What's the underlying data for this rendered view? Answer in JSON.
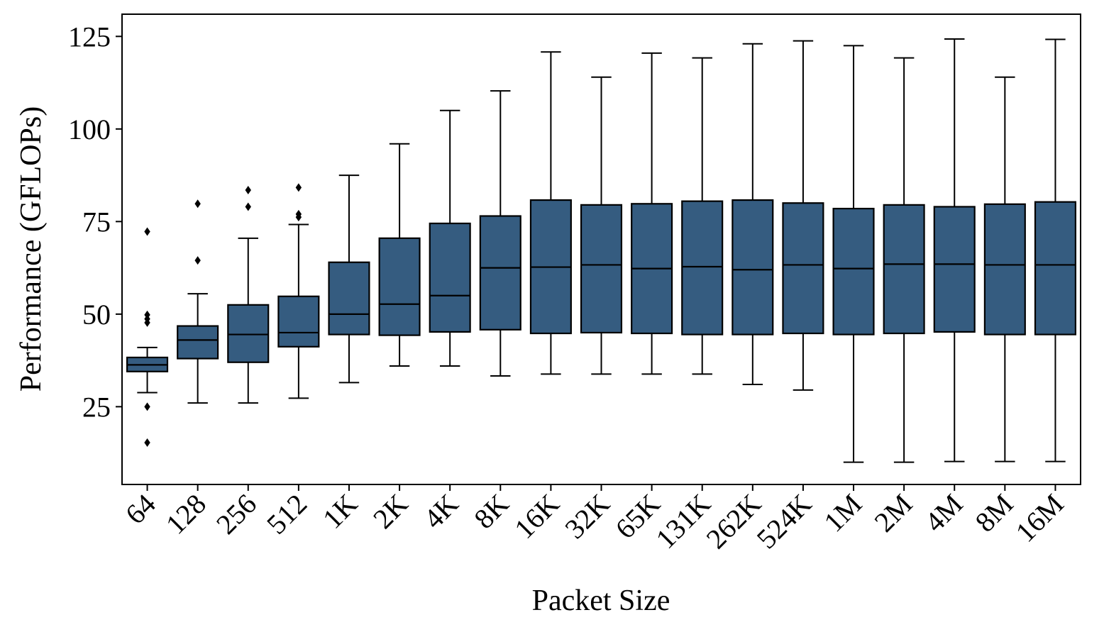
{
  "chart_data": {
    "type": "box",
    "title": "",
    "xlabel": "Packet Size",
    "ylabel": "Performance (GFLOPs)",
    "ylim": [
      4,
      131
    ],
    "yticks": [
      25,
      50,
      75,
      100,
      125
    ],
    "grid": false,
    "legend": "none",
    "box_color": "#355c80",
    "categories": [
      "64",
      "128",
      "256",
      "512",
      "1K",
      "2K",
      "4K",
      "8K",
      "16K",
      "32K",
      "65K",
      "131K",
      "262K",
      "524K",
      "1M",
      "2M",
      "4M",
      "8M",
      "16M"
    ],
    "boxes": [
      {
        "whisker_low": 28.8,
        "q1": 34.5,
        "median": 36.3,
        "q3": 38.3,
        "whisker_high": 41.0,
        "outliers": [
          72.3,
          49.8,
          48.7,
          47.7,
          25.0,
          15.3
        ]
      },
      {
        "whisker_low": 26.0,
        "q1": 38.0,
        "median": 43.0,
        "q3": 46.8,
        "whisker_high": 55.5,
        "outliers": [
          79.8,
          64.5
        ]
      },
      {
        "whisker_low": 26.0,
        "q1": 37.0,
        "median": 44.5,
        "q3": 52.5,
        "whisker_high": 70.5,
        "outliers": [
          83.5,
          79.0
        ]
      },
      {
        "whisker_low": 27.3,
        "q1": 41.2,
        "median": 45.0,
        "q3": 54.8,
        "whisker_high": 74.2,
        "outliers": [
          84.2,
          77.0,
          76.2
        ]
      },
      {
        "whisker_low": 31.5,
        "q1": 44.5,
        "median": 50.0,
        "q3": 64.0,
        "whisker_high": 87.5,
        "outliers": []
      },
      {
        "whisker_low": 36.0,
        "q1": 44.3,
        "median": 52.7,
        "q3": 70.5,
        "whisker_high": 96.0,
        "outliers": []
      },
      {
        "whisker_low": 36.0,
        "q1": 45.2,
        "median": 55.0,
        "q3": 74.5,
        "whisker_high": 105.0,
        "outliers": []
      },
      {
        "whisker_low": 33.3,
        "q1": 45.8,
        "median": 62.5,
        "q3": 76.5,
        "whisker_high": 110.3,
        "outliers": []
      },
      {
        "whisker_low": 33.8,
        "q1": 44.8,
        "median": 62.7,
        "q3": 80.8,
        "whisker_high": 120.8,
        "outliers": []
      },
      {
        "whisker_low": 33.8,
        "q1": 45.0,
        "median": 63.3,
        "q3": 79.5,
        "whisker_high": 114.0,
        "outliers": []
      },
      {
        "whisker_low": 33.8,
        "q1": 44.8,
        "median": 62.3,
        "q3": 79.8,
        "whisker_high": 120.5,
        "outliers": []
      },
      {
        "whisker_low": 33.8,
        "q1": 44.5,
        "median": 62.8,
        "q3": 80.5,
        "whisker_high": 119.2,
        "outliers": []
      },
      {
        "whisker_low": 31.0,
        "q1": 44.5,
        "median": 62.0,
        "q3": 80.8,
        "whisker_high": 123.0,
        "outliers": []
      },
      {
        "whisker_low": 29.5,
        "q1": 44.8,
        "median": 63.3,
        "q3": 80.0,
        "whisker_high": 123.8,
        "outliers": []
      },
      {
        "whisker_low": 10.0,
        "q1": 44.5,
        "median": 62.3,
        "q3": 78.5,
        "whisker_high": 122.5,
        "outliers": []
      },
      {
        "whisker_low": 10.0,
        "q1": 44.8,
        "median": 63.5,
        "q3": 79.5,
        "whisker_high": 119.2,
        "outliers": []
      },
      {
        "whisker_low": 10.2,
        "q1": 45.2,
        "median": 63.5,
        "q3": 79.0,
        "whisker_high": 124.3,
        "outliers": []
      },
      {
        "whisker_low": 10.2,
        "q1": 44.5,
        "median": 63.3,
        "q3": 79.7,
        "whisker_high": 114.0,
        "outliers": []
      },
      {
        "whisker_low": 10.2,
        "q1": 44.5,
        "median": 63.3,
        "q3": 80.3,
        "whisker_high": 124.2,
        "outliers": []
      }
    ]
  }
}
